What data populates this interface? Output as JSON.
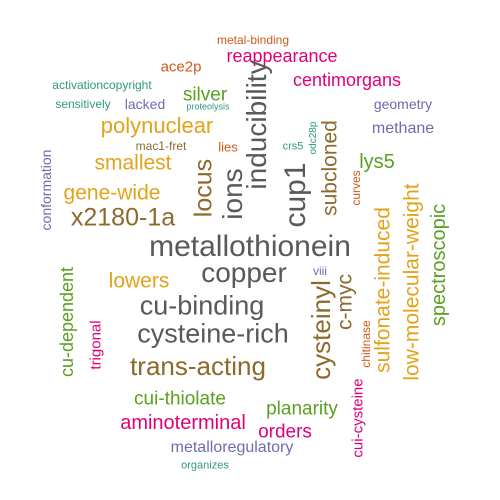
{
  "palette": {
    "gray": "#595959",
    "brown": "#8B6A2B",
    "orange": "#E3A21A",
    "teal": "#2F9A7A",
    "magenta": "#E0007A",
    "green": "#5AA021",
    "purple": "#6E6CB0",
    "rust": "#CF5A1A"
  },
  "words": [
    {
      "text": "metal-binding",
      "color": "rust"
    },
    {
      "text": "ace2p",
      "color": "rust"
    },
    {
      "text": "reappearance",
      "color": "magenta"
    },
    {
      "text": "activationcopyright",
      "color": "teal"
    },
    {
      "text": "centimorgans",
      "color": "magenta"
    },
    {
      "text": "sensitively",
      "color": "teal"
    },
    {
      "text": "lacked",
      "color": "purple"
    },
    {
      "text": "silver",
      "color": "green"
    },
    {
      "text": "proteolysis",
      "color": "teal"
    },
    {
      "text": "geometry",
      "color": "purple"
    },
    {
      "text": "polynuclear",
      "color": "orange"
    },
    {
      "text": "methane",
      "color": "purple"
    },
    {
      "text": "mac1-fret",
      "color": "brown"
    },
    {
      "text": "lies",
      "color": "rust"
    },
    {
      "text": "crs5",
      "color": "teal"
    },
    {
      "text": "odc28p",
      "color": "teal"
    },
    {
      "text": "smallest",
      "color": "orange"
    },
    {
      "text": "lys5",
      "color": "green"
    },
    {
      "text": "gene-wide",
      "color": "orange"
    },
    {
      "text": "x2180-1a",
      "color": "brown"
    },
    {
      "text": "metallothionein",
      "color": "gray"
    },
    {
      "text": "copper",
      "color": "gray"
    },
    {
      "text": "lowers",
      "color": "orange"
    },
    {
      "text": "viii",
      "color": "purple"
    },
    {
      "text": "cu-binding",
      "color": "gray"
    },
    {
      "text": "cysteine-rich",
      "color": "gray"
    },
    {
      "text": "trans-acting",
      "color": "brown"
    },
    {
      "text": "cui-thiolate",
      "color": "green"
    },
    {
      "text": "planarity",
      "color": "green"
    },
    {
      "text": "aminoterminal",
      "color": "magenta"
    },
    {
      "text": "orders",
      "color": "magenta"
    },
    {
      "text": "metalloregulatory",
      "color": "purple"
    },
    {
      "text": "organizes",
      "color": "teal"
    },
    {
      "text": "inducibility",
      "color": "gray"
    },
    {
      "text": "ions",
      "color": "gray"
    },
    {
      "text": "locus",
      "color": "brown"
    },
    {
      "text": "cup1",
      "color": "gray"
    },
    {
      "text": "subcloned",
      "color": "brown"
    },
    {
      "text": "cysteinyl",
      "color": "brown"
    },
    {
      "text": "c-myc",
      "color": "brown"
    },
    {
      "text": "curves",
      "color": "rust"
    },
    {
      "text": "sulfonate-induced",
      "color": "orange"
    },
    {
      "text": "low-molecular-weight",
      "color": "orange"
    },
    {
      "text": "spectroscopic",
      "color": "green"
    },
    {
      "text": "conformation",
      "color": "purple"
    },
    {
      "text": "cu-dependent",
      "color": "green"
    },
    {
      "text": "trigonal",
      "color": "magenta"
    },
    {
      "text": "chitinase",
      "color": "rust"
    },
    {
      "text": "cui-cysteine",
      "color": "magenta"
    }
  ]
}
